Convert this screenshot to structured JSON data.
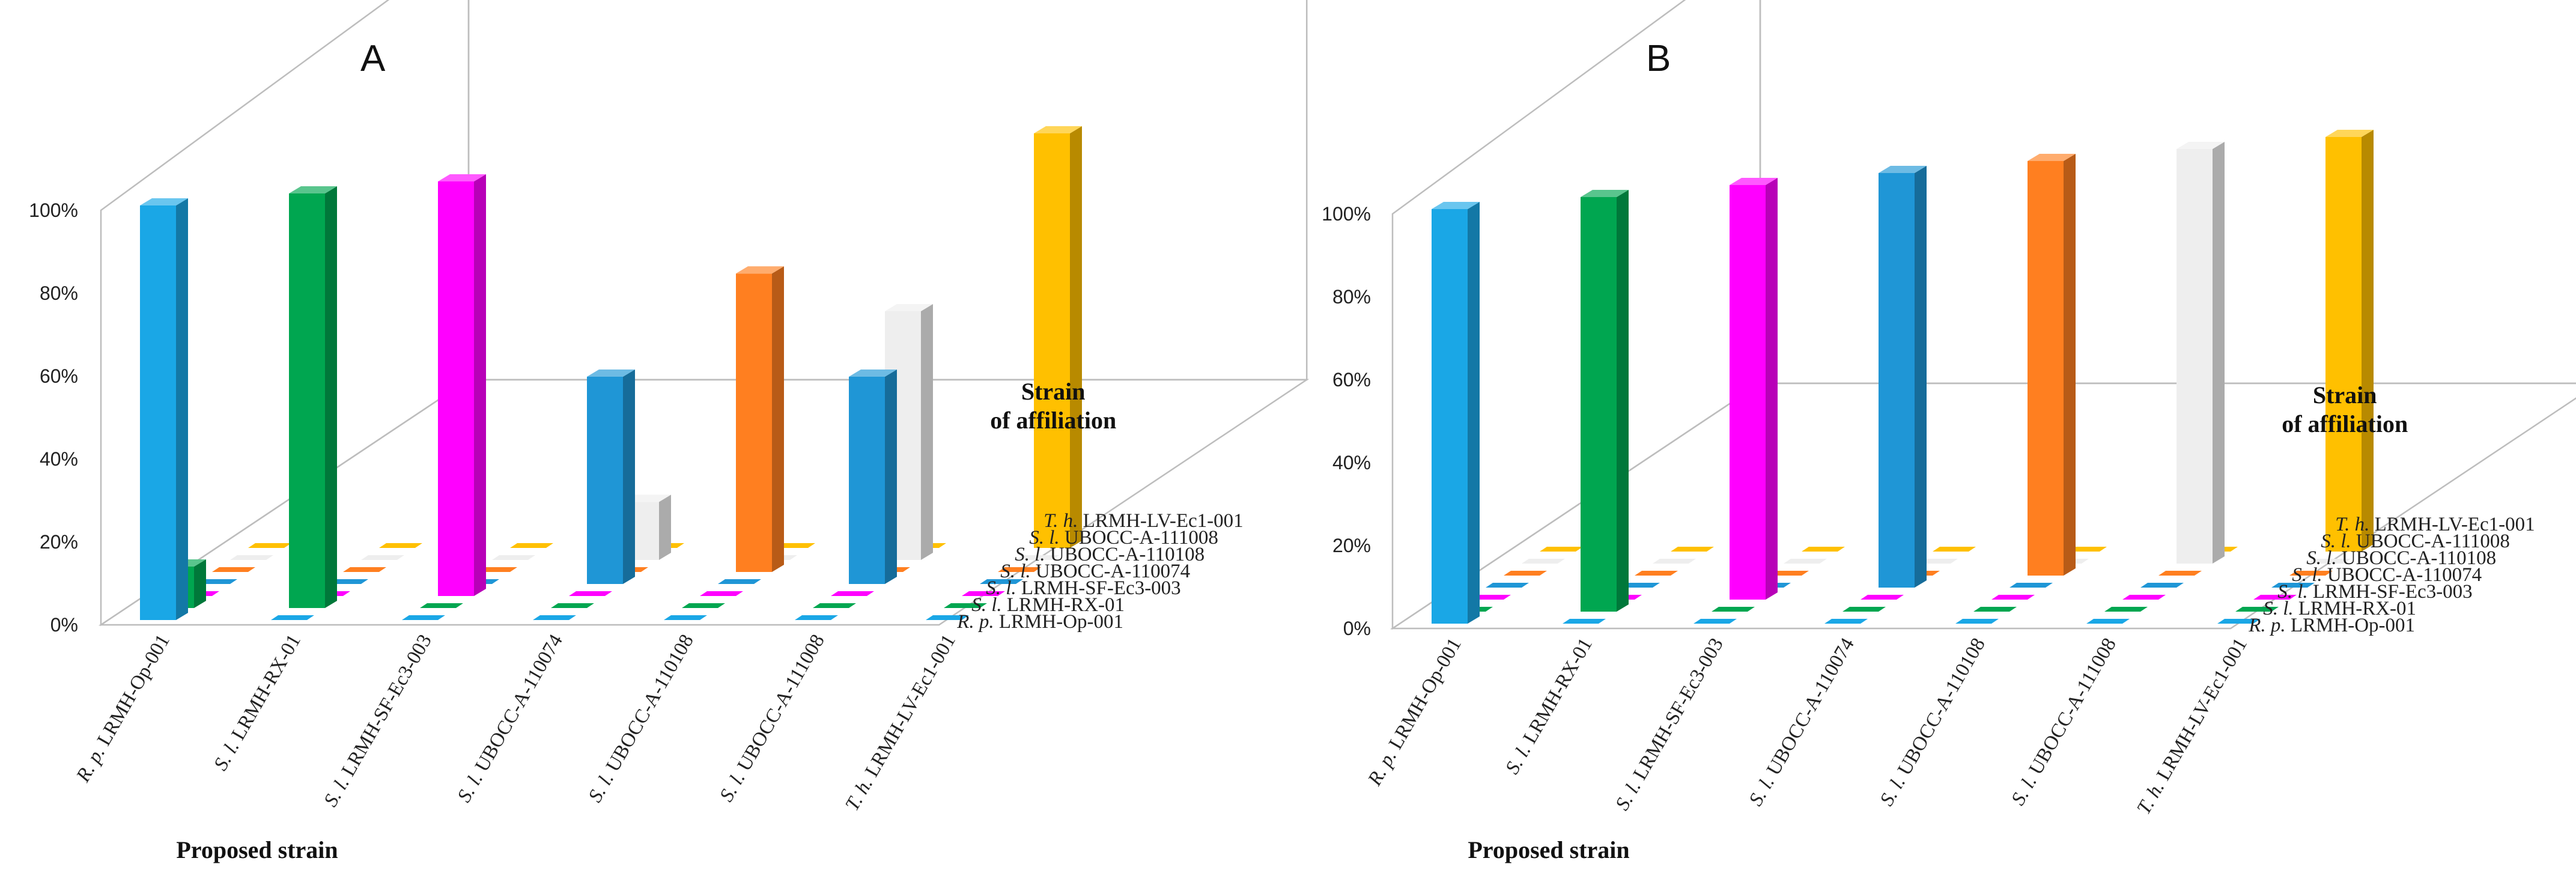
{
  "figure": {
    "colors": [
      "#1aa7e6",
      "#00a650",
      "#ff00ff",
      "#1f96d6",
      "#ff7f20",
      "#eeeeee",
      "#ffc000"
    ],
    "y_ticks": [
      "0%",
      "20%",
      "40%",
      "60%",
      "80%",
      "100%"
    ],
    "panel_labels": [
      "A",
      "B"
    ]
  },
  "chart_data": [
    {
      "type": "bar3d",
      "panel_label": "A",
      "xlabel": "Proposed strain",
      "ylabel_line1": "Strain",
      "ylabel_line2": "of affiliation",
      "ylim": [
        0,
        100
      ],
      "x_categories": [
        {
          "genus": "R. p.",
          "strain": "LRMH-Op-001"
        },
        {
          "genus": "S. l.",
          "strain": "LRMH-RX-01"
        },
        {
          "genus": "S. l.",
          "strain": "LRMH-SF-Ec3-003"
        },
        {
          "genus": "S. l.",
          "strain": "UBOCC-A-110074"
        },
        {
          "genus": "S. l.",
          "strain": "UBOCC-A-110108"
        },
        {
          "genus": "S. l.",
          "strain": "UBOCC-A-111008"
        },
        {
          "genus": "T. h.",
          "strain": "LRMH-LV-Ec1-001"
        }
      ],
      "series": [
        {
          "genus": "R. p.",
          "strain": "LRMH-Op-001",
          "values": [
            100,
            0,
            0,
            0,
            0,
            0,
            0
          ]
        },
        {
          "genus": "S. l.",
          "strain": "LRMH-RX-01",
          "values": [
            10,
            100,
            0,
            0,
            0,
            0,
            0
          ]
        },
        {
          "genus": "S. l.",
          "strain": "LRMH-SF-Ec3-003",
          "values": [
            0,
            0,
            100,
            0,
            0,
            0,
            0
          ]
        },
        {
          "genus": "S. l.",
          "strain": "UBOCC-A-110074",
          "values": [
            0,
            0,
            0,
            50,
            0,
            50,
            0
          ]
        },
        {
          "genus": "S. l.",
          "strain": "UBOCC-A-110108",
          "values": [
            0,
            0,
            0,
            0,
            72,
            0,
            0
          ]
        },
        {
          "genus": "S. l.",
          "strain": "UBOCC-A-111008",
          "values": [
            0,
            0,
            0,
            14,
            0,
            60,
            0
          ]
        },
        {
          "genus": "T. h.",
          "strain": "LRMH-LV-Ec1-001",
          "values": [
            0,
            0,
            0,
            0,
            0,
            0,
            100
          ]
        }
      ]
    },
    {
      "type": "bar3d",
      "panel_label": "B",
      "xlabel": "Proposed strain",
      "ylabel_line1": "Strain",
      "ylabel_line2": "of affiliation",
      "ylim": [
        0,
        100
      ],
      "x_categories": [
        {
          "genus": "R. p.",
          "strain": "LRMH-Op-001"
        },
        {
          "genus": "S. l.",
          "strain": "LRMH-RX-01"
        },
        {
          "genus": "S. l.",
          "strain": "LRMH-SF-Ec3-003"
        },
        {
          "genus": "S. l.",
          "strain": "UBOCC-A-110074"
        },
        {
          "genus": "S. l.",
          "strain": "UBOCC-A-110108"
        },
        {
          "genus": "S. l.",
          "strain": "UBOCC-A-111008"
        },
        {
          "genus": "T. h.",
          "strain": "LRMH-LV-Ec1-001"
        }
      ],
      "series": [
        {
          "genus": "R. p.",
          "strain": "LRMH-Op-001",
          "values": [
            100,
            0,
            0,
            0,
            0,
            0,
            0
          ]
        },
        {
          "genus": "S. l.",
          "strain": "LRMH-RX-01",
          "values": [
            0,
            100,
            0,
            0,
            0,
            0,
            0
          ]
        },
        {
          "genus": "S. l.",
          "strain": "LRMH-SF-Ec3-003",
          "values": [
            0,
            0,
            100,
            0,
            0,
            0,
            0
          ]
        },
        {
          "genus": "S. l.",
          "strain": "UBOCC-A-110074",
          "values": [
            0,
            0,
            0,
            100,
            0,
            0,
            0
          ]
        },
        {
          "genus": "S. l.",
          "strain": "UBOCC-A-110108",
          "values": [
            0,
            0,
            0,
            0,
            100,
            0,
            0
          ]
        },
        {
          "genus": "S. l.",
          "strain": "UBOCC-A-111008",
          "values": [
            0,
            0,
            0,
            0,
            0,
            100,
            0
          ]
        },
        {
          "genus": "T. h.",
          "strain": "LRMH-LV-Ec1-001",
          "values": [
            0,
            0,
            0,
            0,
            0,
            0,
            100
          ]
        }
      ]
    }
  ]
}
